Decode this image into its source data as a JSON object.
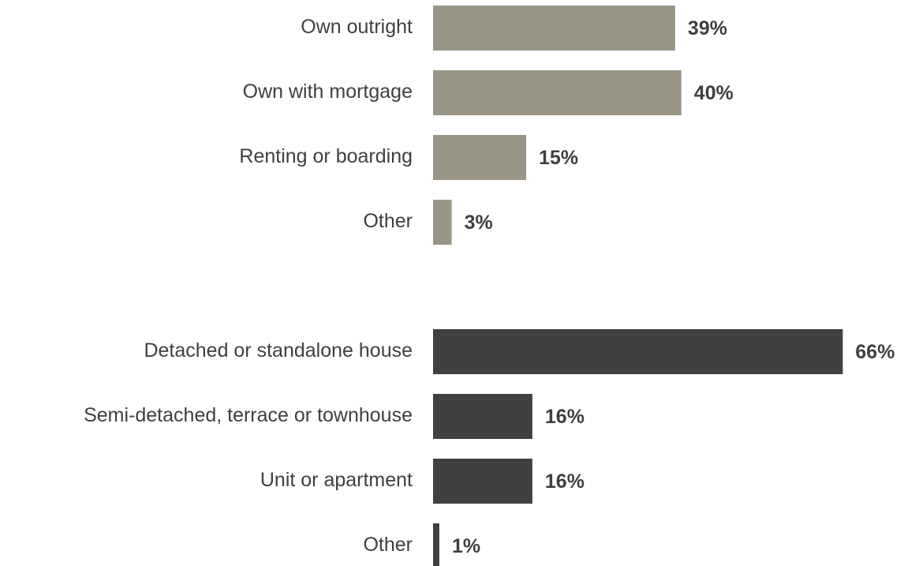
{
  "chart_data": [
    {
      "type": "bar",
      "orientation": "horizontal",
      "categories": [
        "Own outright",
        "Own with mortgage",
        "Renting or boarding",
        "Other"
      ],
      "values": [
        39,
        40,
        15,
        3
      ],
      "value_labels": [
        "39%",
        "40%",
        "15%",
        "3%"
      ],
      "unit": "%",
      "color": "#999686"
    },
    {
      "type": "bar",
      "orientation": "horizontal",
      "categories": [
        "Detached or standalone house",
        "Semi-detached, terrace or townhouse",
        "Unit or apartment",
        "Other"
      ],
      "values": [
        66,
        16,
        16,
        1
      ],
      "value_labels": [
        "66%",
        "16%",
        "16%",
        "1%"
      ],
      "unit": "%",
      "color": "#404040"
    }
  ]
}
